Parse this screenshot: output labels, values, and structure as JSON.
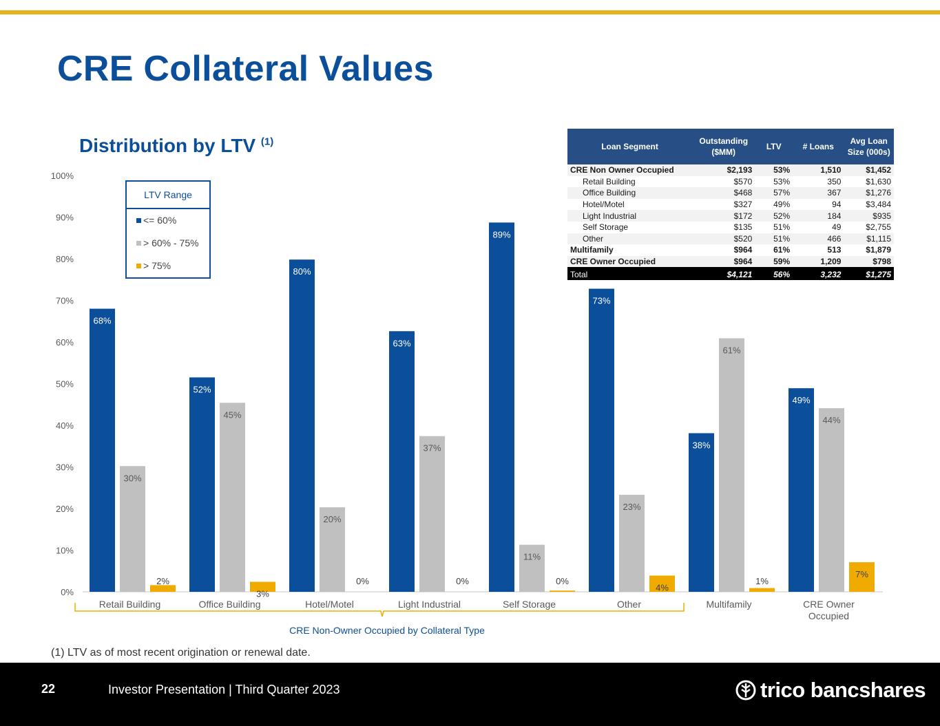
{
  "page": {
    "title": "CRE Collateral Values",
    "page_number": "22",
    "footer_text": "Investor Presentation | Third Quarter 2023",
    "logo_text": "trico bancshares",
    "footnote": "(1)  LTV as of most recent origination or renewal date."
  },
  "colors": {
    "blue": "#0b4e9a",
    "gray": "#c0c0c0",
    "gold": "#f0ab00",
    "accent": "#e8b21d"
  },
  "chart_data": {
    "type": "bar",
    "title": "Distribution by LTV",
    "title_superscript": "(1)",
    "categories": [
      "Retail Building",
      "Office Building",
      "Hotel/Motel",
      "Light Industrial",
      "Self Storage",
      "Other",
      "Multifamily",
      "CRE Owner Occupied"
    ],
    "series": [
      {
        "name": "<= 60%",
        "color": "#0b4e9a",
        "values": [
          68,
          52,
          80,
          63,
          89,
          73,
          38,
          49
        ]
      },
      {
        "name": "> 60% - 75%",
        "color": "#c0c0c0",
        "values": [
          30,
          45,
          20,
          37,
          11,
          23,
          61,
          44
        ]
      },
      {
        "name": "> 75%",
        "color": "#f0ab00",
        "values": [
          2,
          3,
          0,
          0,
          0,
          4,
          1,
          7
        ]
      }
    ],
    "bar_heights_pct": [
      [
        68,
        51.5,
        79.8,
        62.6,
        88.7,
        72.8,
        38.1,
        48.9
      ],
      [
        30.2,
        45.4,
        20.3,
        37.4,
        11.3,
        23.3,
        60.9,
        44.1
      ],
      [
        1.6,
        2.4,
        0.0,
        0.0,
        0.3,
        3.9,
        0.9,
        7.1
      ]
    ],
    "value_labels": [
      [
        "68%",
        "52%",
        "80%",
        "63%",
        "89%",
        "73%",
        "38%",
        "49%"
      ],
      [
        "30%",
        "45%",
        "20%",
        "37%",
        "11%",
        "23%",
        "61%",
        "44%"
      ],
      [
        "2%",
        "3%",
        "0%",
        "0%",
        "0%",
        "4%",
        "1%",
        "7%"
      ]
    ],
    "ylim": [
      0,
      100
    ],
    "yticks": [
      "0%",
      "10%",
      "20%",
      "30%",
      "40%",
      "50%",
      "60%",
      "70%",
      "80%",
      "90%",
      "100%"
    ],
    "legend_title": "LTV Range",
    "group_label": "CRE Non-Owner Occupied by Collateral Type",
    "grid": false
  },
  "legend": {
    "title": "LTV Range",
    "items": [
      "<= 60%",
      "> 60% - 75%",
      "> 75%"
    ]
  },
  "table": {
    "headers": [
      "Loan Segment",
      "Outstanding ($MM)",
      "LTV",
      "# Loans",
      "Avg Loan Size (000s)"
    ],
    "rows": [
      [
        "CRE Non Owner Occupied",
        "$2,193",
        "53%",
        "1,510",
        "$1,452"
      ],
      [
        "Retail Building",
        "$570",
        "53%",
        "350",
        "$1,630"
      ],
      [
        "Office Building",
        "$468",
        "57%",
        "367",
        "$1,276"
      ],
      [
        "Hotel/Motel",
        "$327",
        "49%",
        "94",
        "$3,484"
      ],
      [
        "Light Industrial",
        "$172",
        "52%",
        "184",
        "$935"
      ],
      [
        "Self Storage",
        "$135",
        "51%",
        "49",
        "$2,755"
      ],
      [
        "Other",
        "$520",
        "51%",
        "466",
        "$1,115"
      ],
      [
        "Multifamily",
        "$964",
        "61%",
        "513",
        "$1,879"
      ],
      [
        "CRE Owner Occupied",
        "$964",
        "59%",
        "1,209",
        "$798"
      ],
      [
        "Total",
        "$4,121",
        "56%",
        "3,232",
        "$1,275"
      ]
    ]
  }
}
